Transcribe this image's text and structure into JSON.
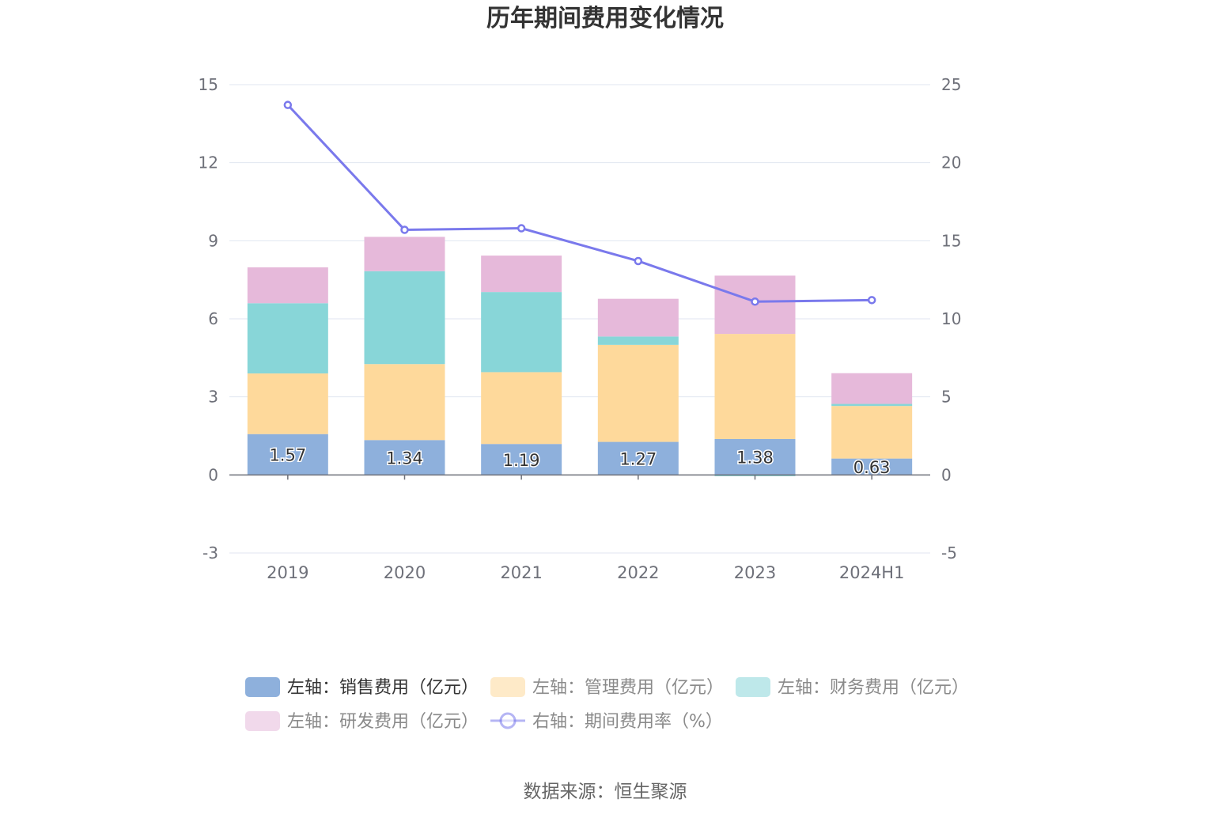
{
  "title": "历年期间费用变化情况",
  "source": "数据来源：恒生聚源",
  "colors": {
    "sales": "#8eb0dc",
    "admin": "#fed99b",
    "finance": "#88d6d8",
    "rnd": "#e6b9da",
    "rate": "#7a79ec",
    "grid": "#e0e6f1",
    "axis": "#6e7079"
  },
  "chart_data": {
    "type": "bar",
    "stacked": true,
    "categories": [
      "2019",
      "2020",
      "2021",
      "2022",
      "2023",
      "2024H1"
    ],
    "left_axis": {
      "min": -3,
      "max": 15,
      "ticks": [
        -3,
        0,
        3,
        6,
        9,
        12,
        15
      ]
    },
    "right_axis": {
      "min": -5,
      "max": 25,
      "ticks": [
        -5,
        0,
        5,
        10,
        15,
        20,
        25
      ]
    },
    "series": [
      {
        "key": "sales",
        "name": "左轴：销售费用（亿元）",
        "axis": "left",
        "type": "bar",
        "values": [
          1.57,
          1.34,
          1.19,
          1.27,
          1.38,
          0.63
        ],
        "labels": [
          "1.57",
          "1.34",
          "1.19",
          "1.27",
          "1.38",
          "0.63"
        ]
      },
      {
        "key": "admin",
        "name": "左轴：管理费用（亿元）",
        "axis": "left",
        "type": "bar",
        "values": [
          2.33,
          2.92,
          2.76,
          3.73,
          4.04,
          2.02
        ]
      },
      {
        "key": "finance",
        "name": "左轴：财务费用（亿元）",
        "axis": "left",
        "type": "bar",
        "values": [
          2.7,
          3.57,
          3.08,
          0.32,
          -0.05,
          0.08
        ]
      },
      {
        "key": "rnd",
        "name": "左轴：研发费用（亿元）",
        "axis": "left",
        "type": "bar",
        "values": [
          1.38,
          1.32,
          1.4,
          1.45,
          2.24,
          1.18
        ]
      },
      {
        "key": "rate",
        "name": "右轴：期间费用率（%）",
        "axis": "right",
        "type": "line",
        "values": [
          23.7,
          15.7,
          15.8,
          13.7,
          11.1,
          11.2
        ]
      }
    ]
  }
}
